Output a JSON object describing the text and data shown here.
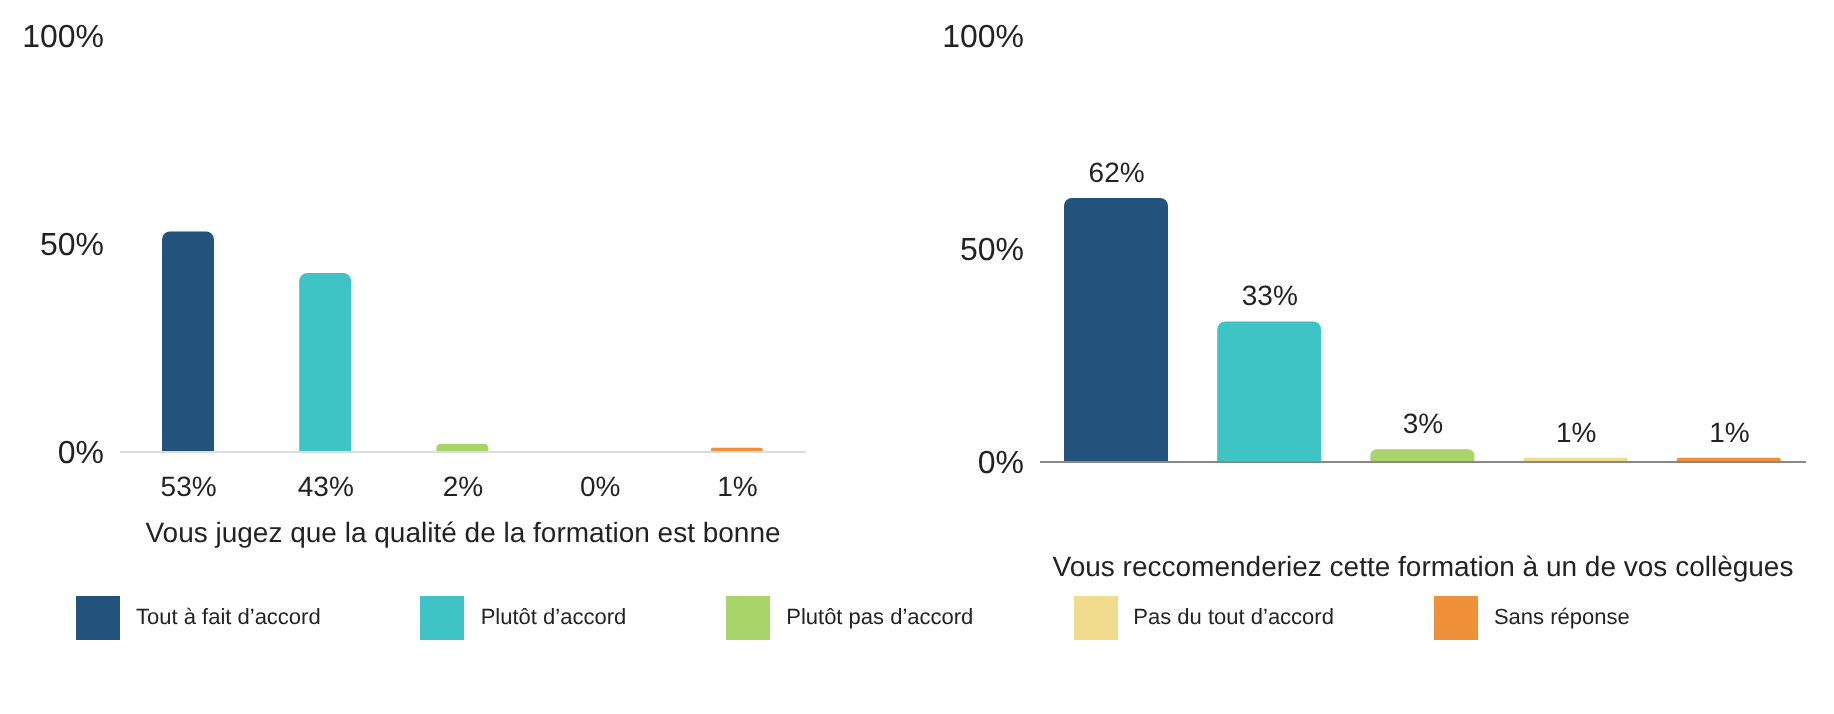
{
  "chart_data": [
    {
      "type": "bar",
      "categories": [
        null,
        null,
        null,
        null,
        null
      ],
      "series": [
        {
          "name": "Tout à fait d’accord",
          "color": "#23527c",
          "values": [
            53,
            null,
            null,
            null,
            null
          ],
          "value_labels": [
            "53%",
            null,
            null,
            null,
            null
          ]
        },
        {
          "name": "Plutôt d’accord",
          "color": "#3ec4c4",
          "values": [
            null,
            43,
            null,
            null,
            null
          ],
          "value_labels": [
            null,
            "43%",
            null,
            null,
            null
          ]
        },
        {
          "name": "Plutôt pas d’accord",
          "color": "#a8d46a",
          "values": [
            null,
            null,
            2,
            null,
            null
          ],
          "value_labels": [
            null,
            null,
            "2%",
            null,
            null
          ]
        },
        {
          "name": "Pas du tout d’accord",
          "color": "#f0dc8c",
          "values": [
            null,
            null,
            null,
            0,
            null
          ],
          "value_labels": [
            null,
            null,
            null,
            "0%",
            null
          ]
        },
        {
          "name": "Sans réponse",
          "color": "#f0913a",
          "values": [
            null,
            null,
            null,
            null,
            1
          ],
          "value_labels": [
            null,
            null,
            null,
            null,
            "1%"
          ]
        }
      ],
      "ylim": [
        0,
        100
      ],
      "yticks": [
        {
          "value": 0,
          "label": "0%"
        },
        {
          "value": 50,
          "label": "50%"
        },
        {
          "value": 100,
          "label": "100%"
        }
      ],
      "xlabel": "Vous jugez que la qualité de la formation est bonne",
      "tick_labels": "y",
      "legend": "bottom",
      "grid": false
    },
    {
      "type": "bar",
      "categories": [
        null,
        null,
        null,
        null,
        null
      ],
      "series": [
        {
          "color": "#23527c",
          "values": [
            62,
            null,
            null,
            null,
            null
          ],
          "value_labels": [
            "62%",
            null,
            null,
            null,
            null
          ]
        },
        {
          "color": "#3ec4c4",
          "values": [
            null,
            33,
            null,
            null,
            null
          ],
          "value_labels": [
            null,
            "33%",
            null,
            null,
            null
          ]
        },
        {
          "color": "#a8d46a",
          "values": [
            null,
            null,
            3,
            null,
            null
          ],
          "value_labels": [
            null,
            null,
            "3%",
            null,
            null
          ]
        },
        {
          "color": "#f0dc8c",
          "values": [
            null,
            null,
            null,
            1,
            null
          ],
          "value_labels": [
            null,
            null,
            null,
            "1%",
            null
          ]
        },
        {
          "color": "#f0913a",
          "values": [
            null,
            null,
            null,
            null,
            1
          ],
          "value_labels": [
            null,
            null,
            null,
            null,
            "1%"
          ]
        }
      ],
      "ylim": [
        0,
        100
      ],
      "yticks": [
        {
          "value": 0,
          "label": "0%"
        },
        {
          "value": 50,
          "label": "50%"
        },
        {
          "value": 100,
          "label": "100%"
        }
      ],
      "xlabel": "Vous reccomenderiez cette formation à un de vos collègues",
      "tick_labels": "y",
      "grid": false
    }
  ]
}
